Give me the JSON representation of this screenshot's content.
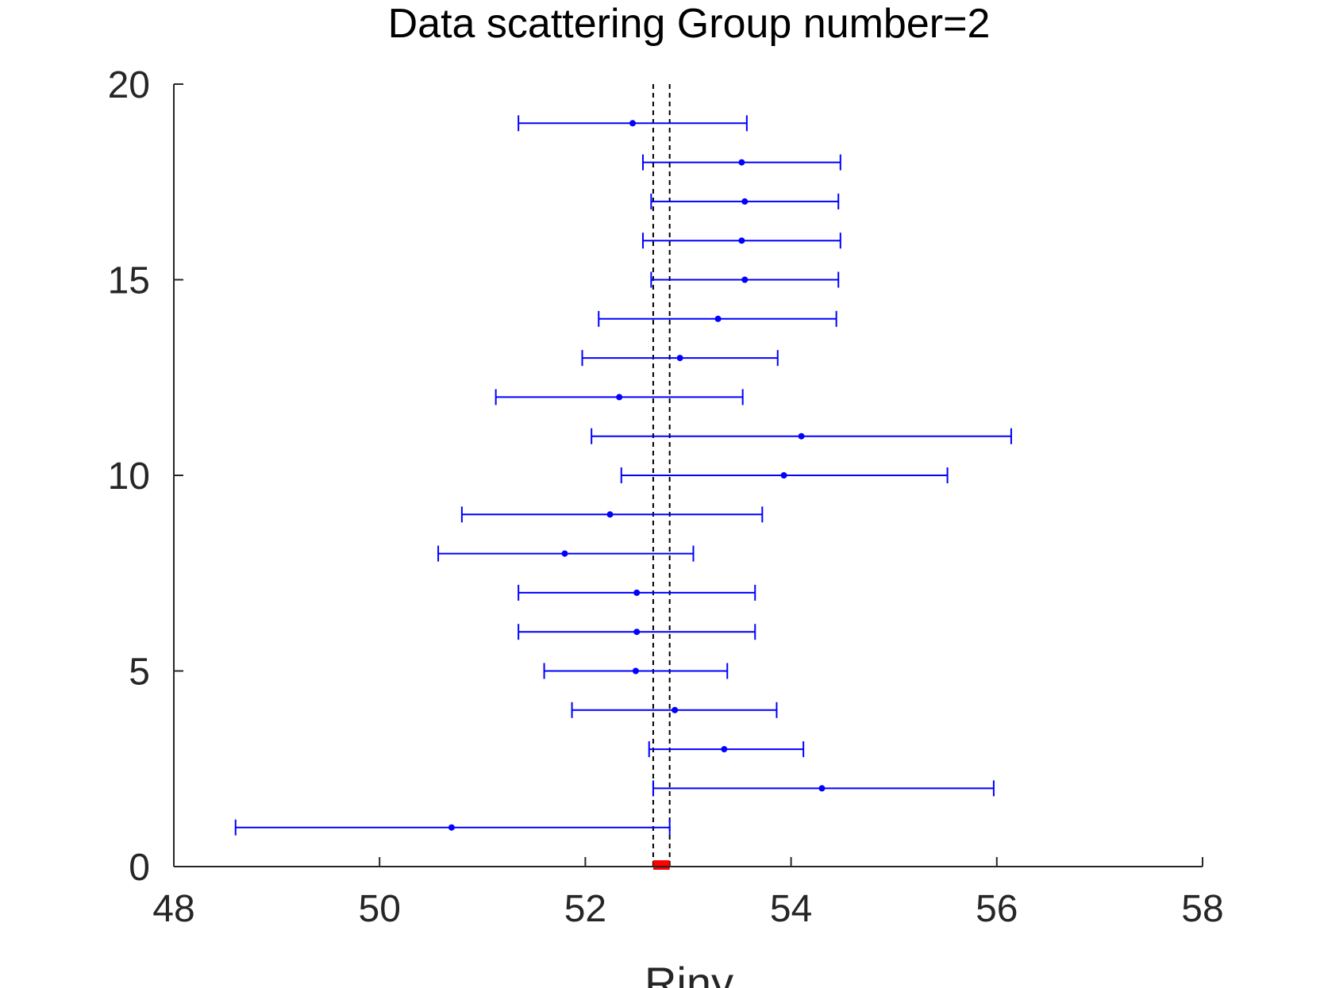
{
  "chart_data": {
    "type": "scatter",
    "title": "Data scattering Group number=2",
    "xlabel": "Riny",
    "ylabel": "",
    "xlim": [
      48,
      58
    ],
    "ylim": [
      0,
      20
    ],
    "xticks": [
      48,
      50,
      52,
      54,
      56,
      58
    ],
    "yticks": [
      0,
      5,
      10,
      15,
      20
    ],
    "grid": false,
    "colors": {
      "points": "#0000ff",
      "errorbars": "#0000ff",
      "reference_lines": "#000000",
      "reference_band_marker": "#ff0000",
      "axes": "#262626"
    },
    "series": [
      {
        "style": "horizontal-errorbar",
        "points": [
          {
            "y": 1,
            "x": 50.7,
            "xmin": 48.6,
            "xmax": 52.82
          },
          {
            "y": 2,
            "x": 54.3,
            "xmin": 52.66,
            "xmax": 55.97
          },
          {
            "y": 3,
            "x": 53.35,
            "xmin": 52.62,
            "xmax": 54.12
          },
          {
            "y": 4,
            "x": 52.87,
            "xmin": 51.87,
            "xmax": 53.86
          },
          {
            "y": 5,
            "x": 52.49,
            "xmin": 51.6,
            "xmax": 53.38
          },
          {
            "y": 6,
            "x": 52.5,
            "xmin": 51.35,
            "xmax": 53.65
          },
          {
            "y": 7,
            "x": 52.5,
            "xmin": 51.35,
            "xmax": 53.65
          },
          {
            "y": 8,
            "x": 51.8,
            "xmin": 50.57,
            "xmax": 53.05
          },
          {
            "y": 9,
            "x": 52.24,
            "xmin": 50.8,
            "xmax": 53.72
          },
          {
            "y": 10,
            "x": 53.93,
            "xmin": 52.35,
            "xmax": 55.52
          },
          {
            "y": 11,
            "x": 54.1,
            "xmin": 52.06,
            "xmax": 56.14
          },
          {
            "y": 12,
            "x": 52.33,
            "xmin": 51.13,
            "xmax": 53.53
          },
          {
            "y": 13,
            "x": 52.92,
            "xmin": 51.97,
            "xmax": 53.87
          },
          {
            "y": 14,
            "x": 53.29,
            "xmin": 52.13,
            "xmax": 54.44
          },
          {
            "y": 15,
            "x": 53.55,
            "xmin": 52.64,
            "xmax": 54.46
          },
          {
            "y": 16,
            "x": 53.52,
            "xmin": 52.56,
            "xmax": 54.48
          },
          {
            "y": 17,
            "x": 53.55,
            "xmin": 52.64,
            "xmax": 54.46
          },
          {
            "y": 18,
            "x": 53.52,
            "xmin": 52.56,
            "xmax": 54.48
          },
          {
            "y": 19,
            "x": 52.46,
            "xmin": 51.35,
            "xmax": 53.57
          }
        ]
      }
    ],
    "reference_lines": {
      "style": "dashed-vertical",
      "x": [
        52.66,
        52.82
      ]
    },
    "reference_band_marker": {
      "y": 0,
      "xmin": 52.66,
      "xmax": 52.82
    }
  }
}
